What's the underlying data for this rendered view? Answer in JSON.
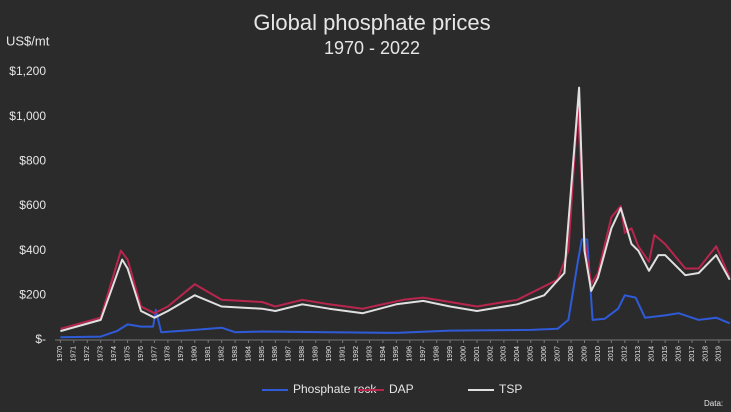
{
  "chart_data": {
    "type": "line",
    "title": "Global phosphate prices",
    "subtitle": "1970 - 2022",
    "y_label": "US$/mt",
    "source_note": "Data:",
    "xlim": [
      1969.6,
      2019.9
    ],
    "xticks": [
      1970,
      1971,
      1972,
      1973,
      1974,
      1975,
      1976,
      1977,
      1978,
      1979,
      1980,
      1981,
      1982,
      1983,
      1984,
      1985,
      1986,
      1987,
      1988,
      1989,
      1990,
      1991,
      1992,
      1993,
      1994,
      1995,
      1996,
      1997,
      1998,
      1999,
      2000,
      2001,
      2002,
      2003,
      2004,
      2005,
      2006,
      2007,
      2008,
      2009,
      2010,
      2011,
      2012,
      2013,
      2014,
      2015,
      2016,
      2017,
      2018,
      2019
    ],
    "ylim": [
      0,
      1200
    ],
    "yticks": [
      {
        "value": 0,
        "label": "$-"
      },
      {
        "value": 200,
        "label": "$200"
      },
      {
        "value": 400,
        "label": "$400"
      },
      {
        "value": 600,
        "label": "$600"
      },
      {
        "value": 800,
        "label": "$800"
      },
      {
        "value": 1000,
        "label": "$1,000"
      },
      {
        "value": 1200,
        "label": "$1,200"
      }
    ],
    "grid": false,
    "legend": "bottom",
    "series": [
      {
        "name": "Phosphate rock",
        "color": "#2f5bd8",
        "x": [
          1970,
          1973,
          1974.2,
          1975,
          1976,
          1976.9,
          1977.1,
          1977.5,
          1980,
          1982,
          1983,
          1985,
          1990,
          1995,
          1999,
          2005,
          2007,
          2007.8,
          2008.5,
          2008.8,
          2009.2,
          2009.6,
          2010.5,
          2011.5,
          2012,
          2012.8,
          2013.5,
          2015,
          2016,
          2017.5,
          2018.8,
          2019.8
        ],
        "values": [
          12,
          15,
          40,
          70,
          60,
          60,
          135,
          35,
          45,
          55,
          35,
          38,
          35,
          32,
          42,
          45,
          50,
          90,
          350,
          450,
          450,
          90,
          95,
          140,
          200,
          190,
          100,
          110,
          120,
          90,
          100,
          75
        ]
      },
      {
        "name": "DAP",
        "color": "#b8264e",
        "x": [
          1970,
          1973,
          1974.5,
          1975,
          1976,
          1977,
          1978,
          1980,
          1982,
          1985,
          1986,
          1988,
          1990,
          1992.5,
          1995.5,
          1997,
          1999,
          2001,
          2004,
          2006,
          2007,
          2007.8,
          2008.5,
          2009,
          2009.5,
          2010,
          2011,
          2011.7,
          2012,
          2012.5,
          2013,
          2013.8,
          2014.2,
          2015,
          2016.5,
          2017.5,
          2018.8,
          2019.8
        ],
        "values": [
          50,
          100,
          400,
          360,
          150,
          120,
          150,
          250,
          180,
          170,
          150,
          180,
          160,
          140,
          180,
          190,
          170,
          150,
          180,
          240,
          270,
          400,
          1050,
          450,
          250,
          300,
          550,
          600,
          480,
          500,
          420,
          350,
          470,
          430,
          320,
          320,
          420,
          280
        ]
      },
      {
        "name": "TSP",
        "color": "#e0e0e0",
        "x": [
          1970,
          1973,
          1974.6,
          1975,
          1976,
          1977,
          1978,
          1980,
          1982,
          1985,
          1986,
          1988,
          1990,
          1992.5,
          1995,
          1997,
          1999,
          2001,
          2004,
          2006,
          2007.5,
          2008.6,
          2009,
          2009.5,
          2010,
          2011,
          2011.7,
          2012.5,
          2013,
          2013.8,
          2014.5,
          2015,
          2016.5,
          2017.5,
          2018.8,
          2019.8
        ],
        "values": [
          40,
          90,
          360,
          320,
          130,
          100,
          130,
          200,
          150,
          140,
          130,
          160,
          140,
          120,
          160,
          175,
          150,
          130,
          160,
          200,
          300,
          1130,
          400,
          220,
          280,
          500,
          590,
          430,
          400,
          310,
          380,
          380,
          290,
          300,
          380,
          270
        ]
      }
    ]
  }
}
